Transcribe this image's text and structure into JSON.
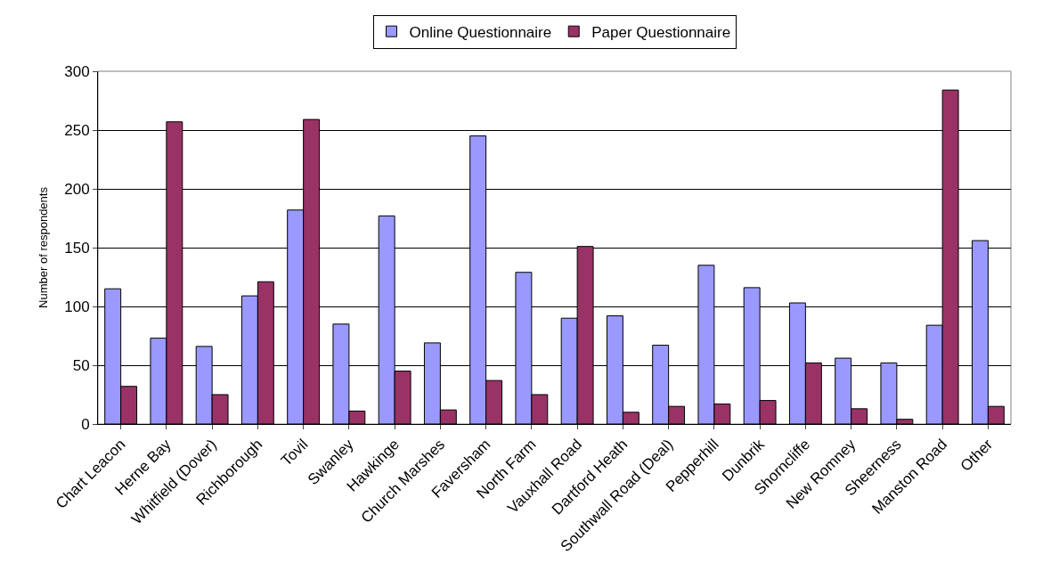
{
  "chart_data": {
    "type": "bar",
    "ylabel": "Number of respondents",
    "categories": [
      "Chart Leacon",
      "Herne Bay",
      "Whitfield (Dover)",
      "Richborough",
      "Tovil",
      "Swanley",
      "Hawkinge",
      "Church Marshes",
      "Faversham",
      "North Farm",
      "Vauxhall Road",
      "Dartford Heath",
      "Southwall Road (Deal)",
      "Pepperhill",
      "Dunbrik",
      "Shorncliffe",
      "New Romney",
      "Sheerness",
      "Manston Road",
      "Other"
    ],
    "series": [
      {
        "name": "Online Questionnaire",
        "color": "#9999ff",
        "values": [
          115,
          73,
          66,
          109,
          182,
          85,
          177,
          69,
          245,
          129,
          90,
          92,
          67,
          135,
          116,
          103,
          56,
          52,
          84,
          156
        ]
      },
      {
        "name": "Paper Questionnaire",
        "color": "#993366",
        "values": [
          32,
          257,
          25,
          121,
          259,
          11,
          45,
          12,
          37,
          25,
          151,
          10,
          15,
          17,
          20,
          52,
          13,
          4,
          284,
          15
        ]
      }
    ],
    "ylim": [
      0,
      300
    ],
    "yticks": [
      0,
      50,
      100,
      150,
      200,
      250,
      300
    ],
    "grid": "y",
    "legend": "top"
  }
}
